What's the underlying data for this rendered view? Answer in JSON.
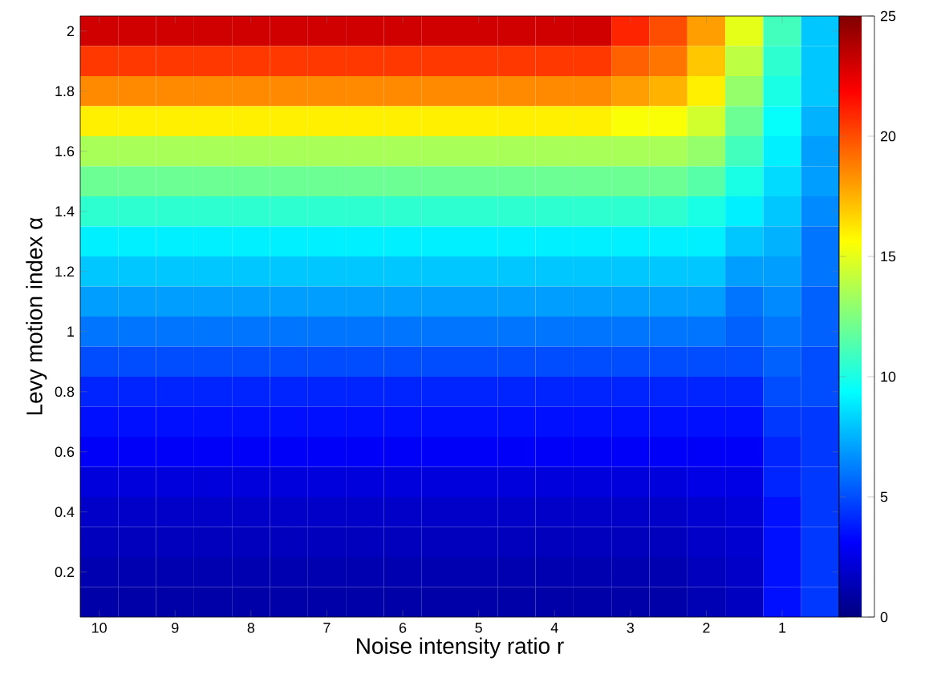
{
  "chart_data": {
    "type": "heatmap",
    "xlabel": "Noise intensity ratio r",
    "ylabel": "Levy motion index α",
    "categories": [
      "10",
      null,
      "9",
      null,
      "8",
      null,
      "7",
      null,
      "6",
      null,
      "5",
      null,
      "4",
      null,
      "3",
      null,
      "2",
      null,
      "1",
      null
    ],
    "y_categories": [
      "2",
      null,
      "1.8",
      null,
      "1.6",
      null,
      "1.4",
      null,
      "1.2",
      null,
      "1",
      null,
      "0.8",
      null,
      "0.6",
      null,
      "0.4",
      null,
      "0.2",
      null
    ],
    "clim": [
      0,
      25
    ],
    "cticks": [
      0,
      5,
      10,
      15,
      20,
      25
    ],
    "cells": [
      [
        23,
        23,
        23,
        23,
        23,
        23,
        23,
        23,
        23,
        23,
        23,
        23,
        23,
        23,
        21,
        20,
        18,
        15,
        11,
        8
      ],
      [
        20.5,
        20.5,
        20.5,
        20.5,
        20.5,
        20.5,
        20.5,
        20.5,
        20.5,
        20.5,
        20.5,
        20.5,
        20.5,
        20.5,
        19.5,
        19,
        17,
        14,
        10.5,
        8
      ],
      [
        18.5,
        18.5,
        18.5,
        18.5,
        18.5,
        18.5,
        18.5,
        18.5,
        18.5,
        18.5,
        18.5,
        18.5,
        18.5,
        18.5,
        18,
        17.5,
        16,
        13,
        10,
        8
      ],
      [
        16,
        16,
        16,
        16,
        16,
        16,
        16,
        16,
        16,
        16,
        16,
        16,
        16,
        16,
        15.5,
        15.5,
        14.5,
        12,
        9.5,
        7.5
      ],
      [
        13.5,
        13.5,
        13.5,
        13.5,
        13.5,
        13.5,
        13.5,
        13.5,
        13.5,
        13.5,
        13.5,
        13.5,
        13.5,
        13.5,
        13.5,
        13.5,
        13,
        11,
        9,
        7
      ],
      [
        12,
        12,
        12,
        12,
        12,
        12,
        12,
        12,
        12,
        12,
        12,
        12,
        12,
        12,
        12,
        12,
        11.5,
        10,
        8.5,
        7
      ],
      [
        10.5,
        10.5,
        10.5,
        10.5,
        10.5,
        10.5,
        10.5,
        10.5,
        10.5,
        10.5,
        10.5,
        10.5,
        10.5,
        10.5,
        10.5,
        10.5,
        10,
        9,
        8,
        6.5
      ],
      [
        9,
        9,
        9,
        9,
        9,
        9,
        9,
        9,
        9,
        9,
        9,
        9,
        9,
        9,
        9,
        9,
        9,
        8,
        7.5,
        6
      ],
      [
        8,
        8,
        8,
        8,
        8,
        8,
        8,
        8,
        8,
        8,
        8,
        8,
        8,
        8,
        8,
        8,
        8,
        7,
        7,
        6
      ],
      [
        7,
        7,
        7,
        7,
        7,
        7,
        7,
        7,
        7,
        7,
        7,
        7,
        7,
        7,
        7,
        7,
        7,
        6,
        6.5,
        5.5
      ],
      [
        6,
        6,
        6,
        6,
        6,
        6,
        6,
        6,
        6,
        6,
        6,
        6,
        6,
        6,
        6,
        6,
        6,
        5.5,
        6,
        5.5
      ],
      [
        5,
        5,
        5,
        5,
        5,
        5,
        5,
        5,
        5,
        5,
        5,
        5,
        5,
        5,
        5,
        5,
        5,
        5,
        5.5,
        5
      ],
      [
        4,
        4,
        4,
        4,
        4,
        4,
        4,
        4,
        4,
        4,
        4,
        4,
        4,
        4,
        4,
        4,
        4,
        4,
        5,
        5
      ],
      [
        3.5,
        3.5,
        3.5,
        3.5,
        3.5,
        3.5,
        3.5,
        3.5,
        3.5,
        3.5,
        3.5,
        3.5,
        3.5,
        3.5,
        3.5,
        3.5,
        3.5,
        3.5,
        4.5,
        4.5
      ],
      [
        3,
        3,
        3,
        3,
        3,
        3,
        3,
        3,
        3,
        3,
        3,
        3,
        3,
        3,
        3,
        3,
        3,
        3,
        4,
        4.5
      ],
      [
        2.3,
        2.3,
        2.3,
        2.3,
        2.3,
        2.3,
        2.3,
        2.3,
        2.3,
        2.3,
        2.3,
        2.3,
        2.3,
        2.3,
        2.3,
        2.3,
        2.5,
        2.5,
        4,
        4.5
      ],
      [
        1.8,
        1.8,
        1.8,
        1.8,
        1.8,
        1.8,
        1.8,
        1.8,
        1.8,
        1.8,
        1.8,
        1.8,
        1.8,
        1.8,
        1.8,
        1.8,
        2,
        2.2,
        3.5,
        4.5
      ],
      [
        1.5,
        1.5,
        1.5,
        1.5,
        1.5,
        1.5,
        1.5,
        1.5,
        1.5,
        1.5,
        1.5,
        1.5,
        1.5,
        1.5,
        1.5,
        1.5,
        1.8,
        2,
        3.5,
        4.5
      ],
      [
        1.2,
        1.2,
        1.2,
        1.2,
        1.2,
        1.2,
        1.2,
        1.2,
        1.2,
        1.2,
        1.2,
        1.2,
        1.2,
        1.2,
        1.2,
        1.2,
        1.5,
        1.8,
        3.5,
        4.5
      ],
      [
        1,
        1,
        1,
        1,
        1,
        1,
        1,
        1,
        1,
        1,
        1,
        1,
        1,
        1,
        1,
        1,
        1.3,
        1.6,
        3.5,
        4.5
      ]
    ]
  }
}
